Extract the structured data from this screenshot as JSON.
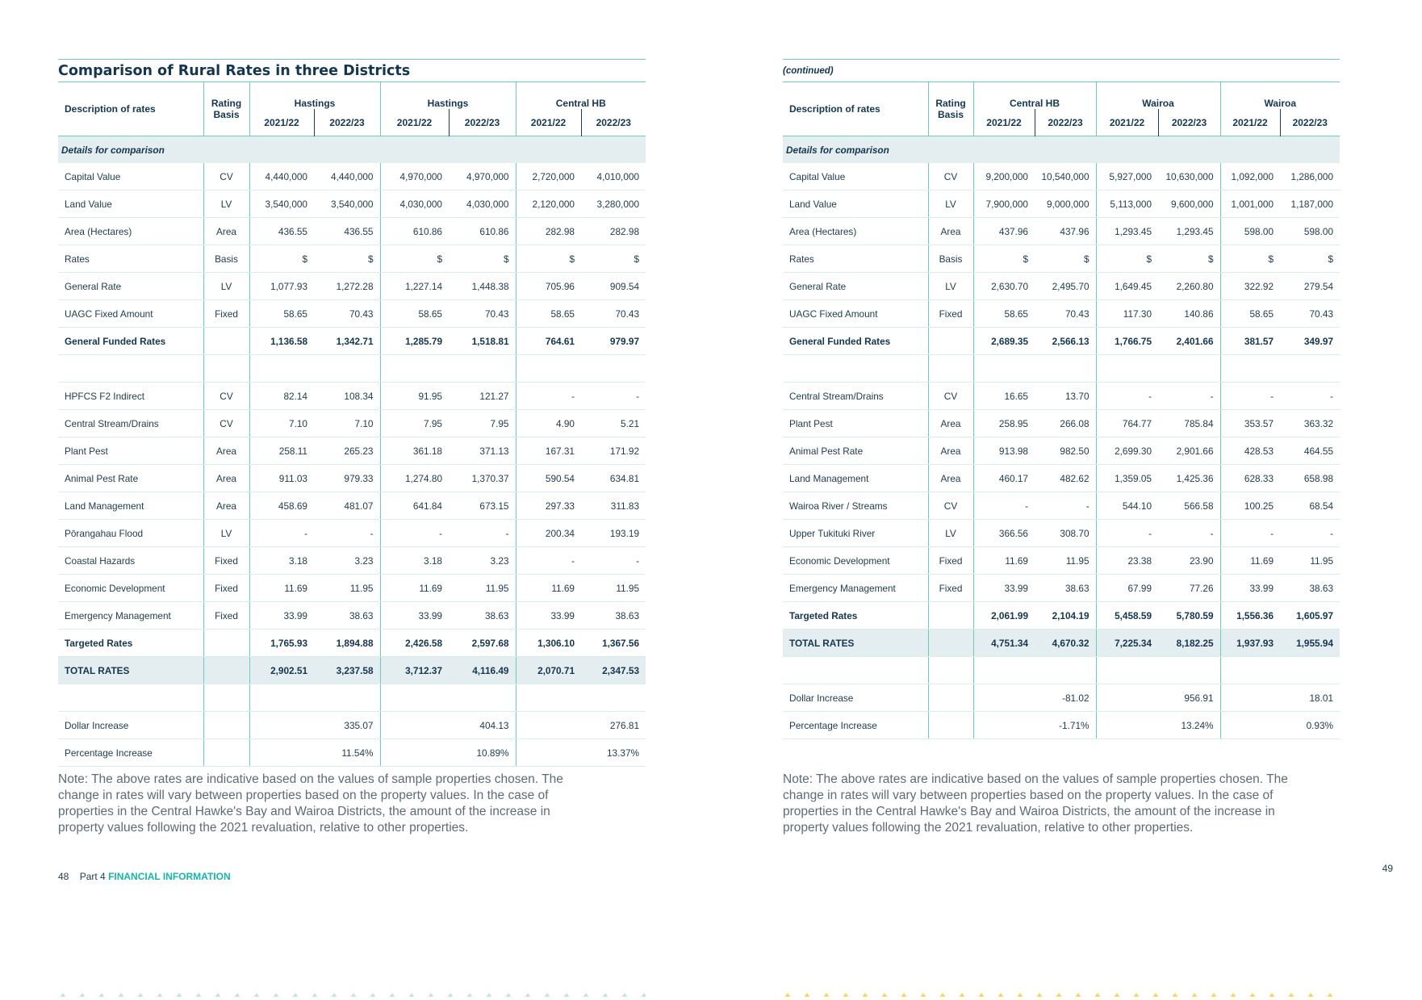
{
  "left": {
    "title": "Comparison of Rural Rates in three Districts",
    "headers": {
      "desc": "Description of rates",
      "basis_line1": "Rating",
      "basis_line2": "Basis",
      "groups": [
        "Hastings",
        "Hastings",
        "Central HB"
      ],
      "years": [
        "2021/22",
        "2022/23",
        "2021/22",
        "2022/23",
        "2021/22",
        "2022/23"
      ]
    },
    "section_label": "Details for comparison",
    "rows": [
      {
        "label": "Capital Value",
        "basis": "CV",
        "vals": [
          "4,440,000",
          "4,440,000",
          "4,970,000",
          "4,970,000",
          "2,720,000",
          "4,010,000"
        ]
      },
      {
        "label": "Land Value",
        "basis": "LV",
        "vals": [
          "3,540,000",
          "3,540,000",
          "4,030,000",
          "4,030,000",
          "2,120,000",
          "3,280,000"
        ]
      },
      {
        "label": "Area (Hectares)",
        "basis": "Area",
        "vals": [
          "436.55",
          "436.55",
          "610.86",
          "610.86",
          "282.98",
          "282.98"
        ]
      },
      {
        "label": "Rates",
        "basis": "Basis",
        "vals": [
          "$",
          "$",
          "$",
          "$",
          "$",
          "$"
        ]
      },
      {
        "label": "General Rate",
        "basis": "LV",
        "vals": [
          "1,077.93",
          "1,272.28",
          "1,227.14",
          "1,448.38",
          "705.96",
          "909.54"
        ]
      },
      {
        "label": "UAGC Fixed Amount",
        "basis": "Fixed",
        "vals": [
          "58.65",
          "70.43",
          "58.65",
          "70.43",
          "58.65",
          "70.43"
        ]
      },
      {
        "label": "General Funded Rates",
        "basis": "",
        "vals": [
          "1,136.58",
          "1,342.71",
          "1,285.79",
          "1,518.81",
          "764.61",
          "979.97"
        ]
      },
      {
        "label": "",
        "basis": "",
        "vals": [
          "",
          "",
          "",
          "",
          "",
          ""
        ]
      },
      {
        "label": "HPFCS F2 Indirect",
        "basis": "CV",
        "vals": [
          "82.14",
          "108.34",
          "91.95",
          "121.27",
          "-",
          "-"
        ]
      },
      {
        "label": "Central Stream/Drains",
        "basis": "CV",
        "vals": [
          "7.10",
          "7.10",
          "7.95",
          "7.95",
          "4.90",
          "5.21"
        ]
      },
      {
        "label": "Plant Pest",
        "basis": "Area",
        "vals": [
          "258.11",
          "265.23",
          "361.18",
          "371.13",
          "167.31",
          "171.92"
        ]
      },
      {
        "label": "Animal Pest Rate",
        "basis": "Area",
        "vals": [
          "911.03",
          "979.33",
          "1,274.80",
          "1,370.37",
          "590.54",
          "634.81"
        ]
      },
      {
        "label": "Land Management",
        "basis": "Area",
        "vals": [
          "458.69",
          "481.07",
          "641.84",
          "673.15",
          "297.33",
          "311.83"
        ]
      },
      {
        "label": "Pōrangahau Flood",
        "basis": "LV",
        "vals": [
          "-",
          "-",
          "-",
          "-",
          "200.34",
          "193.19"
        ]
      },
      {
        "label": "Coastal Hazards",
        "basis": "Fixed",
        "vals": [
          "3.18",
          "3.23",
          "3.18",
          "3.23",
          "-",
          "-"
        ]
      },
      {
        "label": "Economic Development",
        "basis": "Fixed",
        "vals": [
          "11.69",
          "11.95",
          "11.69",
          "11.95",
          "11.69",
          "11.95"
        ]
      },
      {
        "label": "Emergency Management",
        "basis": "Fixed",
        "vals": [
          "33.99",
          "38.63",
          "33.99",
          "38.63",
          "33.99",
          "38.63"
        ]
      },
      {
        "label": "Targeted Rates",
        "basis": "",
        "vals": [
          "1,765.93",
          "1,894.88",
          "2,426.58",
          "2,597.68",
          "1,306.10",
          "1,367.56"
        ]
      },
      {
        "label": "TOTAL RATES",
        "basis": "",
        "vals": [
          "2,902.51",
          "3,237.58",
          "3,712.37",
          "4,116.49",
          "2,070.71",
          "2,347.53"
        ]
      },
      {
        "label": "",
        "basis": "",
        "vals": [
          "",
          "",
          "",
          "",
          "",
          ""
        ]
      },
      {
        "label": "Dollar Increase",
        "basis": "",
        "vals": [
          "",
          "335.07",
          "",
          "404.13",
          "",
          "276.81"
        ]
      },
      {
        "label": "Percentage Increase",
        "basis": "",
        "vals": [
          "",
          "11.54%",
          "",
          "10.89%",
          "",
          "13.37%"
        ]
      }
    ],
    "note": "Note: The above rates are indicative based on the values of sample properties chosen. The change in rates will vary between properties based on the property values. In the case of properties in the Central Hawke's Bay and Wairoa Districts, the amount of the increase in property values following the 2021 revaluation, relative to other properties.",
    "footer": {
      "page_number": "48",
      "part": "Part 4",
      "section": "FINANCIAL INFORMATION"
    }
  },
  "right": {
    "title": "(continued)",
    "headers": {
      "desc": "Description of rates",
      "basis_line1": "Rating",
      "basis_line2": "Basis",
      "groups": [
        "Central HB",
        "Wairoa",
        "Wairoa"
      ],
      "years": [
        "2021/22",
        "2022/23",
        "2021/22",
        "2022/23",
        "2021/22",
        "2022/23"
      ]
    },
    "section_label": "Details for comparison",
    "rows": [
      {
        "label": "Capital Value",
        "basis": "CV",
        "vals": [
          "9,200,000",
          "10,540,000",
          "5,927,000",
          "10,630,000",
          "1,092,000",
          "1,286,000"
        ]
      },
      {
        "label": "Land Value",
        "basis": "LV",
        "vals": [
          "7,900,000",
          "9,000,000",
          "5,113,000",
          "9,600,000",
          "1,001,000",
          "1,187,000"
        ]
      },
      {
        "label": "Area (Hectares)",
        "basis": "Area",
        "vals": [
          "437.96",
          "437.96",
          "1,293.45",
          "1,293.45",
          "598.00",
          "598.00"
        ]
      },
      {
        "label": "Rates",
        "basis": "Basis",
        "vals": [
          "$",
          "$",
          "$",
          "$",
          "$",
          "$"
        ]
      },
      {
        "label": "General Rate",
        "basis": "LV",
        "vals": [
          "2,630.70",
          "2,495.70",
          "1,649.45",
          "2,260.80",
          "322.92",
          "279.54"
        ]
      },
      {
        "label": "UAGC Fixed Amount",
        "basis": "Fixed",
        "vals": [
          "58.65",
          "70.43",
          "117.30",
          "140.86",
          "58.65",
          "70.43"
        ]
      },
      {
        "label": "General Funded Rates",
        "basis": "",
        "vals": [
          "2,689.35",
          "2,566.13",
          "1,766.75",
          "2,401.66",
          "381.57",
          "349.97"
        ]
      },
      {
        "label": "",
        "basis": "",
        "vals": [
          "",
          "",
          "",
          "",
          "",
          ""
        ]
      },
      {
        "label": "Central Stream/Drains",
        "basis": "CV",
        "vals": [
          "16.65",
          "13.70",
          "-",
          "-",
          "-",
          "-"
        ]
      },
      {
        "label": "Plant Pest",
        "basis": "Area",
        "vals": [
          "258.95",
          "266.08",
          "764.77",
          "785.84",
          "353.57",
          "363.32"
        ]
      },
      {
        "label": "Animal Pest Rate",
        "basis": "Area",
        "vals": [
          "913.98",
          "982.50",
          "2,699.30",
          "2,901.66",
          "428.53",
          "464.55"
        ]
      },
      {
        "label": "Land Management",
        "basis": "Area",
        "vals": [
          "460.17",
          "482.62",
          "1,359.05",
          "1,425.36",
          "628.33",
          "658.98"
        ]
      },
      {
        "label": "Wairoa River / Streams",
        "basis": "CV",
        "vals": [
          "-",
          "-",
          "544.10",
          "566.58",
          "100.25",
          "68.54"
        ]
      },
      {
        "label": "Upper Tukituki River",
        "basis": "LV",
        "vals": [
          "366.56",
          "308.70",
          "-",
          "-",
          "-",
          "-"
        ]
      },
      {
        "label": "Economic Development",
        "basis": "Fixed",
        "vals": [
          "11.69",
          "11.95",
          "23.38",
          "23.90",
          "11.69",
          "11.95"
        ]
      },
      {
        "label": "Emergency Management",
        "basis": "Fixed",
        "vals": [
          "33.99",
          "38.63",
          "67.99",
          "77.26",
          "33.99",
          "38.63"
        ]
      },
      {
        "label": "Targeted Rates",
        "basis": "",
        "vals": [
          "2,061.99",
          "2,104.19",
          "5,458.59",
          "5,780.59",
          "1,556.36",
          "1,605.97"
        ]
      },
      {
        "label": "TOTAL RATES",
        "basis": "",
        "vals": [
          "4,751.34",
          "4,670.32",
          "7,225.34",
          "8,182.25",
          "1,937.93",
          "1,955.94"
        ]
      },
      {
        "label": "",
        "basis": "",
        "vals": [
          "",
          "",
          "",
          "",
          "",
          ""
        ]
      },
      {
        "label": "Dollar Increase",
        "basis": "",
        "vals": [
          "",
          "-81.02",
          "",
          "956.91",
          "",
          "18.01"
        ]
      },
      {
        "label": "Percentage Increase",
        "basis": "",
        "vals": [
          "",
          "-1.71%",
          "",
          "13.24%",
          "",
          "0.93%"
        ]
      }
    ],
    "note": "Note: The above rates are indicative based on the values of sample properties chosen. The change in rates will vary between properties based on the property values. In the case of properties in the Central Hawke's Bay and Wairoa Districts, the amount of the increase in property values following the 2021 revaluation, relative to other properties.",
    "footer": {
      "page_number": "49"
    }
  },
  "colors": {
    "accent_teal": "#6fcabb",
    "heading_navy": "#15364f",
    "section_bg": "#e4edf0",
    "footer_teal": "#19b3aa",
    "triangle_teal": "#bfe6e0",
    "triangle_yellow": "#f6d35b"
  }
}
